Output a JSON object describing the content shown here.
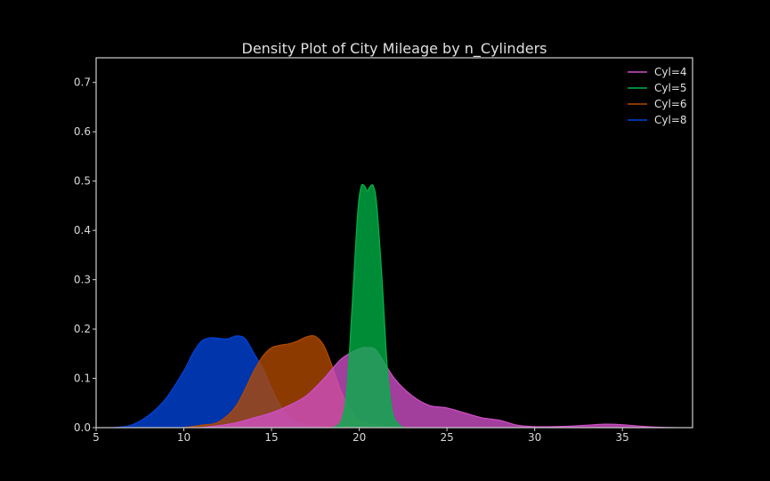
{
  "chart_data": {
    "type": "area",
    "title": "Density Plot of City Mileage by n_Cylinders",
    "xlabel": "",
    "ylabel": "",
    "xlim": [
      5,
      39
    ],
    "ylim": [
      0,
      0.75
    ],
    "x_ticks": [
      "5",
      "10",
      "15",
      "20",
      "25",
      "30",
      "35"
    ],
    "y_ticks": [
      "0.0",
      "0.1",
      "0.2",
      "0.3",
      "0.4",
      "0.5",
      "0.6",
      "0.7"
    ],
    "legend_position": "top-right",
    "grid": false,
    "series": [
      {
        "name": "Cyl=8",
        "color": "#0044dd",
        "points": [
          [
            6,
            0
          ],
          [
            7,
            0.005
          ],
          [
            8,
            0.025
          ],
          [
            9,
            0.06
          ],
          [
            10,
            0.115
          ],
          [
            10.5,
            0.15
          ],
          [
            11,
            0.175
          ],
          [
            11.5,
            0.182
          ],
          [
            12,
            0.181
          ],
          [
            12.5,
            0.18
          ],
          [
            13,
            0.186
          ],
          [
            13.5,
            0.18
          ],
          [
            14,
            0.15
          ],
          [
            14.5,
            0.12
          ],
          [
            15,
            0.08
          ],
          [
            15.5,
            0.045
          ],
          [
            16,
            0.02
          ],
          [
            17,
            0.005
          ],
          [
            18,
            0
          ]
        ]
      },
      {
        "name": "Cyl=6",
        "color": "#b34a00",
        "points": [
          [
            10,
            0
          ],
          [
            11,
            0.005
          ],
          [
            12,
            0.012
          ],
          [
            13,
            0.045
          ],
          [
            14,
            0.115
          ],
          [
            14.5,
            0.145
          ],
          [
            15,
            0.162
          ],
          [
            15.5,
            0.167
          ],
          [
            16,
            0.17
          ],
          [
            16.5,
            0.176
          ],
          [
            17,
            0.184
          ],
          [
            17.5,
            0.185
          ],
          [
            18,
            0.165
          ],
          [
            18.5,
            0.12
          ],
          [
            19,
            0.07
          ],
          [
            19.5,
            0.035
          ],
          [
            20,
            0.015
          ],
          [
            21,
            0.005
          ],
          [
            22,
            0
          ]
        ]
      },
      {
        "name": "Cyl=4",
        "color": "#d04fc8",
        "points": [
          [
            11,
            0
          ],
          [
            12,
            0.004
          ],
          [
            13,
            0.01
          ],
          [
            14,
            0.02
          ],
          [
            15,
            0.03
          ],
          [
            16,
            0.045
          ],
          [
            17,
            0.065
          ],
          [
            18,
            0.1
          ],
          [
            19,
            0.14
          ],
          [
            20,
            0.16
          ],
          [
            20.5,
            0.162
          ],
          [
            21,
            0.155
          ],
          [
            22,
            0.1
          ],
          [
            23,
            0.065
          ],
          [
            24,
            0.045
          ],
          [
            25,
            0.04
          ],
          [
            26,
            0.03
          ],
          [
            27,
            0.02
          ],
          [
            28,
            0.015
          ],
          [
            29,
            0.005
          ],
          [
            30,
            0.002
          ],
          [
            31,
            0.002
          ],
          [
            32,
            0.003
          ],
          [
            33,
            0.005
          ],
          [
            34,
            0.007
          ],
          [
            35,
            0.006
          ],
          [
            36,
            0.003
          ],
          [
            37,
            0.001
          ],
          [
            38,
            0
          ]
        ]
      },
      {
        "name": "Cyl=5",
        "color": "#00b447",
        "points": [
          [
            18.5,
            0
          ],
          [
            19,
            0.015
          ],
          [
            19.3,
            0.08
          ],
          [
            19.6,
            0.25
          ],
          [
            19.9,
            0.43
          ],
          [
            20.1,
            0.488
          ],
          [
            20.3,
            0.49
          ],
          [
            20.45,
            0.48
          ],
          [
            20.6,
            0.488
          ],
          [
            20.8,
            0.49
          ],
          [
            21,
            0.45
          ],
          [
            21.3,
            0.3
          ],
          [
            21.6,
            0.12
          ],
          [
            21.9,
            0.03
          ],
          [
            22.3,
            0.005
          ],
          [
            22.6,
            0
          ]
        ]
      }
    ]
  }
}
